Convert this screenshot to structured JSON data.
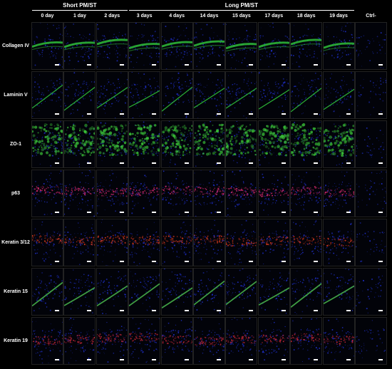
{
  "groups": [
    {
      "label": "Short PM/ST",
      "start": 0,
      "end": 2
    },
    {
      "label": "Long PM/ST",
      "start": 3,
      "end": 9
    }
  ],
  "columns": [
    "0 day",
    "1 day",
    "2 days",
    "3 days",
    "4 days",
    "14 days",
    "15 days",
    "17 days",
    "18 days",
    "19 days",
    "Ctrl-"
  ],
  "rows": [
    "Collagen IV",
    "Laminin V",
    "ZO-1",
    "p63",
    "Keratin 3/12",
    "Keratin 15",
    "Keratin 19"
  ],
  "stain_colors": [
    "#2fbf3a",
    "#2fbf3a",
    "#3cc83a",
    "#d42a6e",
    "#d83a1e",
    "#47b04a",
    "#c8283a"
  ],
  "nuclear_color": "#2233d8",
  "scale_bar_color": "#ffffff"
}
